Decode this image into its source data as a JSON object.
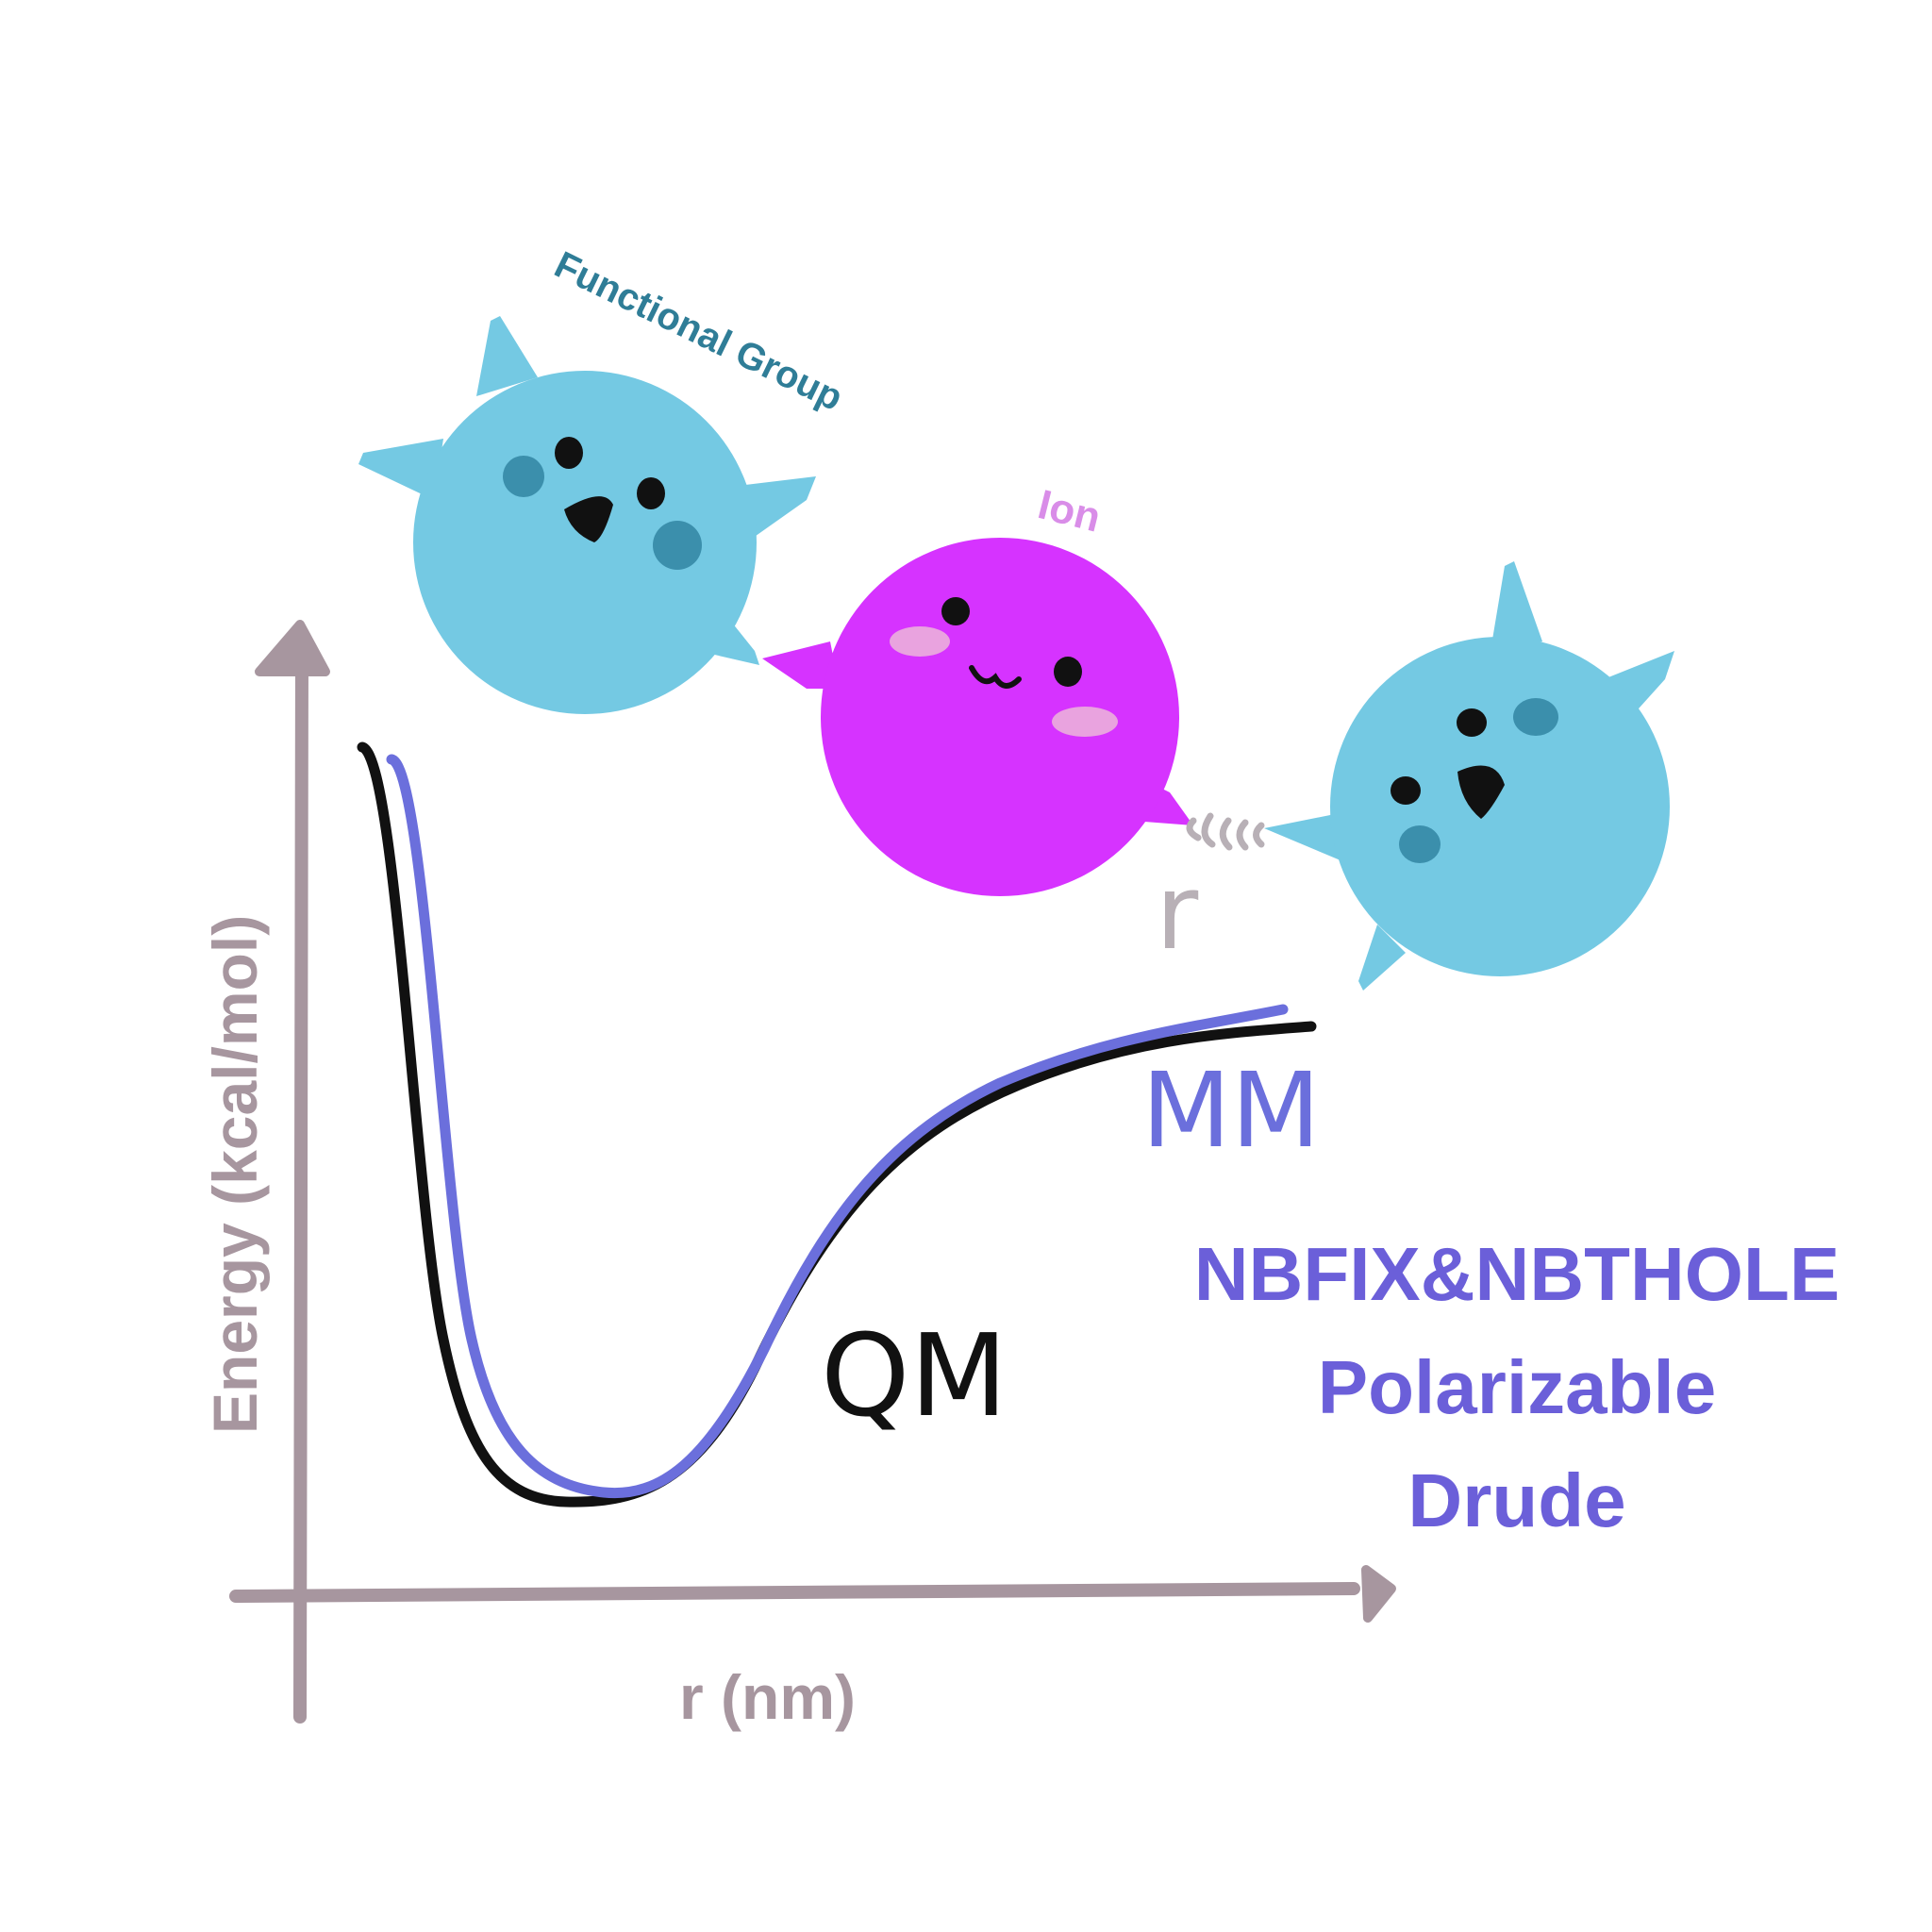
{
  "axes": {
    "y_label": "Energy (kcal/mol)",
    "x_label": "r (nm)",
    "color": "#a7969f"
  },
  "curves": [
    {
      "label": "QM",
      "color": "#111111"
    },
    {
      "label": "MM",
      "color": "#6b6fdc"
    }
  ],
  "characters": {
    "functional_group_label": "Functional Group",
    "ion_label": "Ion",
    "distance_label": "r",
    "functional_group_color": "#74c9e3",
    "ion_color": "#d633ff"
  },
  "methods": {
    "line1": "NBFIX&NBTHOLE",
    "line2": "Polarizable",
    "line3": "Drude",
    "color": "#6b5fd9"
  }
}
